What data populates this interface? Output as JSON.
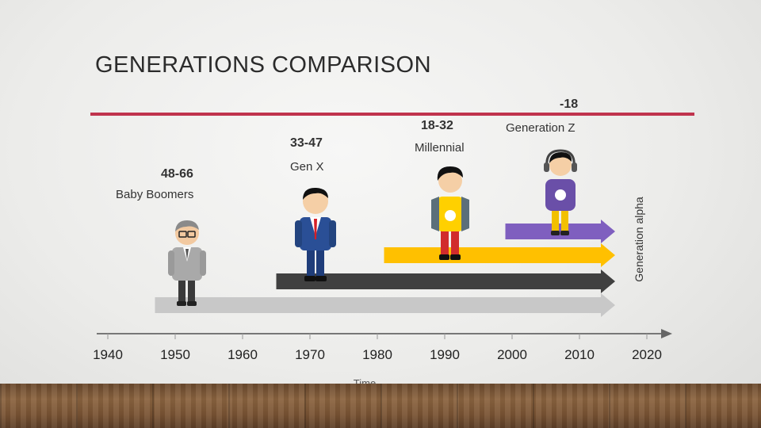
{
  "title": "GENERATIONS COMPARISON",
  "generations": [
    {
      "name": "Baby Boomers",
      "age": "48-66"
    },
    {
      "name": "Gen X",
      "age": "33-47"
    },
    {
      "name": "Millennial",
      "age": "18-32"
    },
    {
      "name": "Generation Z",
      "age": "-18"
    },
    {
      "name": "Generation alpha"
    }
  ],
  "axis": {
    "years": [
      "1940",
      "1950",
      "1960",
      "1970",
      "1980",
      "1990",
      "2000",
      "2010",
      "2020"
    ],
    "title": "Time"
  },
  "arrows": [
    {
      "generation": "Baby Boomers",
      "start_year": 1947,
      "color": "#c8c8c8"
    },
    {
      "generation": "Gen X",
      "start_year": 1965,
      "color": "#404040"
    },
    {
      "generation": "Millennial",
      "start_year": 1981,
      "color": "#ffc000"
    },
    {
      "generation": "Generation Z",
      "start_year": 1999,
      "color": "#7f5fbf"
    }
  ],
  "colors": {
    "accent_line": "#c0334d",
    "boomer": "#c8c8c8",
    "genx": "#404040",
    "millennial": "#ffc000",
    "genz": "#7f5fbf"
  }
}
